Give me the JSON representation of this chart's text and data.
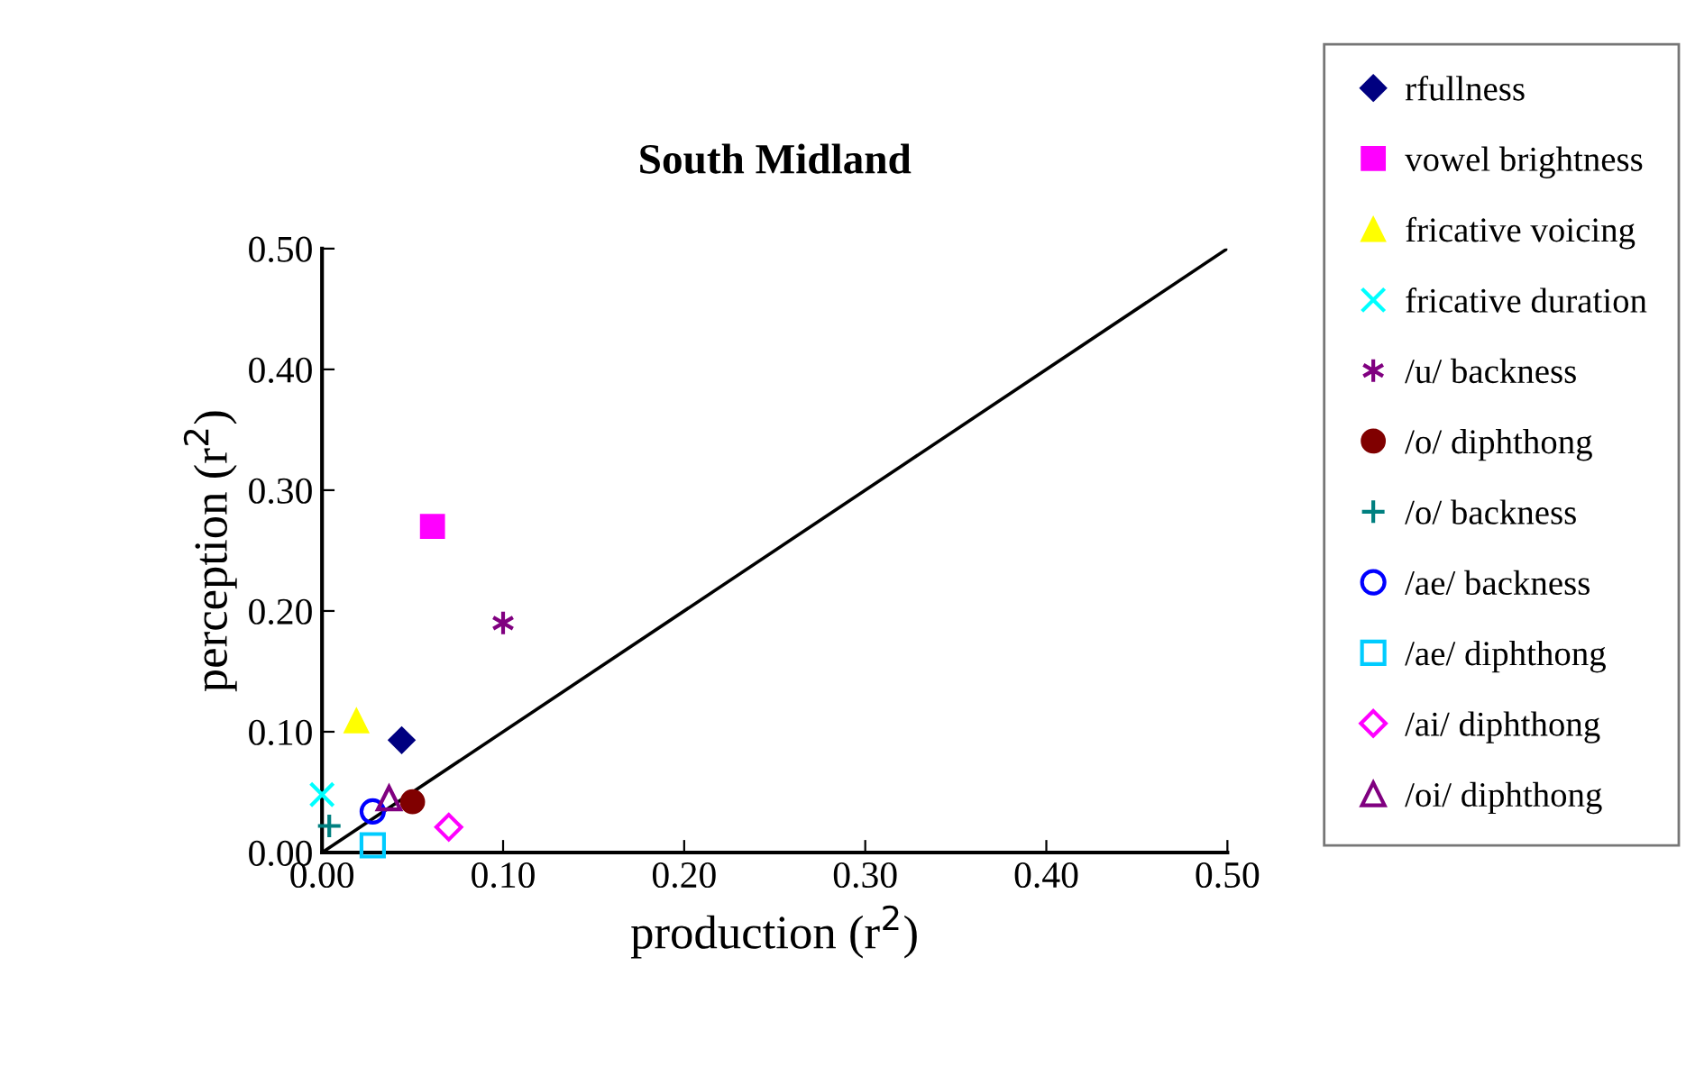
{
  "chart_data": {
    "type": "scatter",
    "title": "South Midland",
    "xlabel": "production (r$^{2}$)",
    "ylabel": "perception (r$^{2}$)",
    "xlim": [
      0,
      0.5
    ],
    "ylim": [
      0,
      0.5
    ],
    "xticks": [
      {
        "value": 0,
        "label": "0.00"
      },
      {
        "value": 0.1,
        "label": "0.10"
      },
      {
        "value": 0.2,
        "label": "0.20"
      },
      {
        "value": 0.3,
        "label": "0.30"
      },
      {
        "value": 0.4,
        "label": "0.40"
      },
      {
        "value": 0.5,
        "label": "0.50"
      }
    ],
    "yticks": [
      {
        "value": 0,
        "label": "0.00"
      },
      {
        "value": 0.1,
        "label": "0.10"
      },
      {
        "value": 0.2,
        "label": "0.20"
      },
      {
        "value": 0.3,
        "label": "0.30"
      },
      {
        "value": 0.4,
        "label": "0.40"
      },
      {
        "value": 0.5,
        "label": "0.50"
      }
    ],
    "grid": false,
    "legend": "right",
    "series": [
      {
        "type": "line",
        "color": "#000000",
        "x": [
          0,
          0.5
        ],
        "values": [
          0,
          0.5
        ],
        "marker": "none"
      },
      {
        "name": "rfullness",
        "color": "#000080",
        "x": [
          0.044
        ],
        "values": [
          0.093
        ],
        "marker": "diamond"
      },
      {
        "name": "vowel brightness",
        "color": "#ff00ff",
        "x": [
          0.061
        ],
        "values": [
          0.27
        ],
        "marker": "square"
      },
      {
        "name": "fricative voicing",
        "color": "#ffff00",
        "x": [
          0.019
        ],
        "values": [
          0.109
        ],
        "marker": "triangle"
      },
      {
        "name": "fricative duration",
        "color": "#00ffff",
        "x": [
          0.0
        ],
        "values": [
          0.048
        ],
        "marker": "cross"
      },
      {
        "name": "/u/ backness",
        "color": "#800080",
        "x": [
          0.1
        ],
        "values": [
          0.19
        ],
        "marker": "cross"
      },
      {
        "name": "/o/ diphthong",
        "color": "#800000",
        "x": [
          0.05
        ],
        "values": [
          0.042
        ],
        "marker": "circle"
      },
      {
        "name": "/o/ backness",
        "color": "#008080",
        "x": [
          0.004
        ],
        "values": [
          0.022
        ],
        "marker": "plus"
      },
      {
        "name": "/ae/ backness",
        "color": "#0000ff",
        "x": [
          0.028
        ],
        "values": [
          0.034
        ],
        "marker": "circle"
      },
      {
        "name": "/ae/ diphthong",
        "color": "#00ccff",
        "x": [
          0.028
        ],
        "values": [
          0.006
        ],
        "marker": "square"
      },
      {
        "name": "/ai/ diphthong",
        "color": "#ff00ff",
        "x": [
          0.07
        ],
        "values": [
          0.021
        ],
        "marker": "diamond"
      },
      {
        "name": "/oi/ diphthong",
        "color": "#800080",
        "x": [
          0.037
        ],
        "values": [
          0.045
        ],
        "marker": "triangle"
      }
    ]
  }
}
